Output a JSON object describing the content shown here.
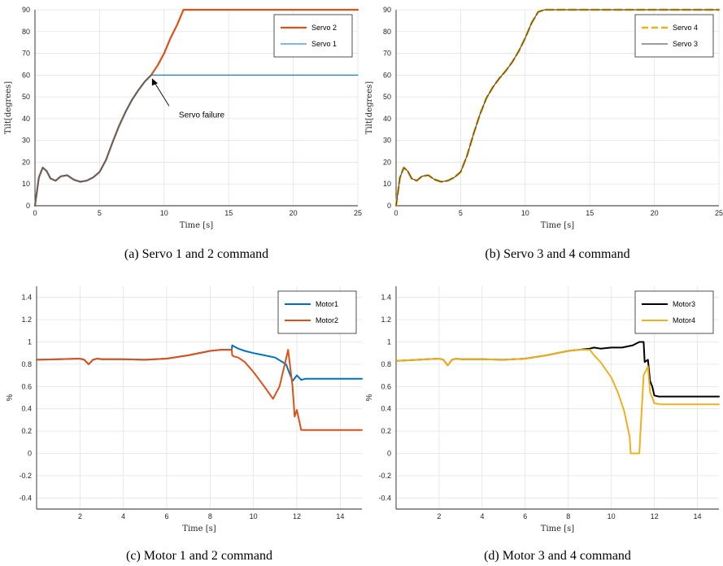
{
  "chart_data": [
    {
      "type": "line",
      "id": "a",
      "caption": "(a)  Servo 1 and 2 command",
      "xlabel": "Time [s]",
      "ylabel": "Tilt[degrees]",
      "xlim": [
        0,
        25
      ],
      "ylim": [
        0,
        90
      ],
      "xticks": [
        "0",
        "5",
        "10",
        "15",
        "20",
        "25"
      ],
      "yticks": [
        "0",
        "10",
        "20",
        "30",
        "40",
        "50",
        "60",
        "70",
        "80",
        "90"
      ],
      "grid": true,
      "legend": "top-right",
      "annotation": {
        "text": "Servo failure",
        "x": 9.0,
        "y": 60
      },
      "series": [
        {
          "name": "Servo 2",
          "color": "#D95319",
          "width": 2.2,
          "x": [
            0,
            0.3,
            0.6,
            0.9,
            1.2,
            1.6,
            2.0,
            2.5,
            3.0,
            3.5,
            4.0,
            4.5,
            5.0,
            5.5,
            6.0,
            6.5,
            7.0,
            7.5,
            8.0,
            8.5,
            9.0,
            9.5,
            10.0,
            10.5,
            11.0,
            11.5,
            25
          ],
          "y": [
            0,
            13,
            17.5,
            16,
            12.5,
            11.5,
            13.5,
            14,
            12,
            11,
            11.5,
            13,
            15.5,
            21,
            29,
            36.5,
            43,
            48.5,
            53,
            57,
            60,
            64.5,
            70,
            77,
            83,
            90,
            90
          ]
        },
        {
          "name": "Servo 1",
          "color": "#0072BD",
          "width": 1.1,
          "x": [
            9.0,
            25
          ],
          "y": [
            60,
            60
          ]
        },
        {
          "name": "",
          "color": "#646464",
          "width": 2.0,
          "x": [
            0,
            0.3,
            0.6,
            0.9,
            1.2,
            1.6,
            2.0,
            2.5,
            3.0,
            3.5,
            4.0,
            4.5,
            5.0,
            5.5,
            6.0,
            6.5,
            7.0,
            7.5,
            8.0,
            8.5,
            9.0
          ],
          "y": [
            0,
            13,
            17.5,
            16,
            12.5,
            11.5,
            13.5,
            14,
            12,
            11,
            11.5,
            13,
            15.5,
            21,
            29,
            36.5,
            43,
            48.5,
            53,
            57,
            60
          ]
        }
      ]
    },
    {
      "type": "line",
      "id": "b",
      "caption": "(b)  Servo 3 and 4 command",
      "xlabel": "Time [s]",
      "ylabel": "Tilt[degrees]",
      "xlim": [
        0,
        25
      ],
      "ylim": [
        0,
        90
      ],
      "xticks": [
        "0",
        "5",
        "10",
        "15",
        "20",
        "25"
      ],
      "yticks": [
        "0",
        "10",
        "20",
        "30",
        "40",
        "50",
        "60",
        "70",
        "80",
        "90"
      ],
      "grid": true,
      "legend": "top-right",
      "series": [
        {
          "name": "Servo 4",
          "color": "#EDB120",
          "width": 2.8,
          "dash": true,
          "x": [
            0,
            0.3,
            0.6,
            0.9,
            1.2,
            1.6,
            2.0,
            2.5,
            3.0,
            3.5,
            4.0,
            4.5,
            5.0,
            5.5,
            6.0,
            6.5,
            7.0,
            7.5,
            8.0,
            8.5,
            9.0,
            9.5,
            10.0,
            10.5,
            11.0,
            11.5,
            25
          ],
          "y": [
            0,
            13,
            17.5,
            16,
            12.5,
            11.5,
            13.5,
            14,
            12,
            11,
            11.5,
            13,
            15.5,
            23,
            33,
            42,
            49.5,
            54.5,
            58.5,
            62,
            66,
            71,
            77,
            84,
            89,
            90,
            90
          ]
        },
        {
          "name": "Servo 3",
          "color": "#3a3a3a",
          "width": 1.0,
          "x": [
            0,
            0.3,
            0.6,
            0.9,
            1.2,
            1.6,
            2.0,
            2.5,
            3.0,
            3.5,
            4.0,
            4.5,
            5.0,
            5.5,
            6.0,
            6.5,
            7.0,
            7.5,
            8.0,
            8.5,
            9.0,
            9.5,
            10.0,
            10.5,
            11.0,
            11.5,
            25
          ],
          "y": [
            0,
            13,
            17.5,
            16,
            12.5,
            11.5,
            13.5,
            14,
            12,
            11,
            11.5,
            13,
            15.5,
            23,
            33,
            42,
            49.5,
            54.5,
            58.5,
            62,
            66,
            71,
            77,
            84,
            89,
            90,
            90
          ]
        }
      ]
    },
    {
      "type": "line",
      "id": "c",
      "caption": "(c)  Motor 1 and 2 command",
      "xlabel": "Time [s]",
      "ylabel": "%",
      "xlim": [
        0,
        15
      ],
      "ylim": [
        -0.5,
        1.5
      ],
      "xticks": [
        "2",
        "4",
        "6",
        "8",
        "10",
        "12",
        "14"
      ],
      "yticks": [
        "-0.4",
        "-0.2",
        "0",
        "0.2",
        "0.4",
        "0.6",
        "0.8",
        "1",
        "1.2",
        "1.4"
      ],
      "grid": true,
      "legend": "top-right",
      "series": [
        {
          "name": "Motor1",
          "color": "#0072BD",
          "width": 2.0,
          "x": [
            0,
            1,
            2,
            2.2,
            2.4,
            2.6,
            2.8,
            3,
            4,
            5,
            6,
            7,
            8,
            8.5,
            9,
            9.02,
            9.1,
            9.3,
            9.6,
            10,
            10.5,
            11,
            11.5,
            11.8,
            12,
            12.2,
            12.4,
            13,
            14,
            15
          ],
          "y": [
            0.84,
            0.845,
            0.85,
            0.84,
            0.8,
            0.84,
            0.85,
            0.845,
            0.845,
            0.84,
            0.85,
            0.88,
            0.92,
            0.93,
            0.93,
            0.97,
            0.96,
            0.94,
            0.92,
            0.9,
            0.88,
            0.86,
            0.8,
            0.65,
            0.7,
            0.66,
            0.67,
            0.67,
            0.67,
            0.67
          ]
        },
        {
          "name": "Motor2",
          "color": "#D95319",
          "width": 2.0,
          "x": [
            0,
            1,
            2,
            2.2,
            2.4,
            2.6,
            2.8,
            3,
            4,
            5,
            6,
            7,
            8,
            8.5,
            9,
            9.02,
            9.1,
            9.3,
            9.6,
            10,
            10.5,
            10.9,
            11.2,
            11.6,
            11.8,
            11.9,
            12,
            12.1,
            12.2,
            12.3,
            13,
            14,
            15
          ],
          "y": [
            0.84,
            0.845,
            0.85,
            0.84,
            0.8,
            0.84,
            0.85,
            0.845,
            0.845,
            0.84,
            0.85,
            0.88,
            0.92,
            0.93,
            0.93,
            0.88,
            0.87,
            0.86,
            0.82,
            0.73,
            0.6,
            0.49,
            0.6,
            0.93,
            0.6,
            0.33,
            0.39,
            0.3,
            0.21,
            0.21,
            0.21,
            0.21,
            0.21
          ]
        }
      ]
    },
    {
      "type": "line",
      "id": "d",
      "caption": "(d)  Motor 3 and 4 command",
      "xlabel": "Time [s]",
      "ylabel": "%",
      "xlim": [
        0,
        15
      ],
      "ylim": [
        -0.5,
        1.5
      ],
      "xticks": [
        "2",
        "4",
        "6",
        "8",
        "10",
        "12",
        "14"
      ],
      "yticks": [
        "-0.4",
        "-0.2",
        "0",
        "0.2",
        "0.4",
        "0.6",
        "0.8",
        "1",
        "1.2",
        "1.4"
      ],
      "grid": true,
      "legend": "top-right",
      "series": [
        {
          "name": "Motor3",
          "color": "#000000",
          "width": 2.0,
          "x": [
            0,
            1,
            2,
            2.2,
            2.4,
            2.6,
            2.8,
            3,
            4,
            5,
            6,
            7,
            8,
            8.5,
            9,
            9.2,
            9.5,
            10,
            10.5,
            11,
            11.3,
            11.5,
            11.55,
            11.7,
            11.8,
            11.9,
            12,
            12.2,
            13,
            14,
            15
          ],
          "y": [
            0.83,
            0.84,
            0.85,
            0.84,
            0.79,
            0.84,
            0.85,
            0.845,
            0.845,
            0.84,
            0.85,
            0.88,
            0.92,
            0.93,
            0.94,
            0.95,
            0.94,
            0.95,
            0.95,
            0.97,
            1.0,
            1.0,
            0.82,
            0.84,
            0.65,
            0.6,
            0.52,
            0.51,
            0.51,
            0.51,
            0.51
          ]
        },
        {
          "name": "Motor4",
          "color": "#EDB120",
          "width": 2.0,
          "x": [
            0,
            1,
            2,
            2.2,
            2.4,
            2.6,
            2.8,
            3,
            4,
            5,
            6,
            7,
            8,
            8.5,
            9,
            9.2,
            9.5,
            10,
            10.3,
            10.6,
            10.85,
            10.9,
            11.3,
            11.5,
            11.7,
            11.8,
            11.9,
            12,
            12.3,
            13,
            14,
            15
          ],
          "y": [
            0.83,
            0.84,
            0.85,
            0.84,
            0.79,
            0.84,
            0.85,
            0.845,
            0.845,
            0.84,
            0.85,
            0.88,
            0.92,
            0.93,
            0.93,
            0.88,
            0.82,
            0.68,
            0.55,
            0.38,
            0.15,
            0.0,
            0.0,
            0.7,
            0.78,
            0.55,
            0.5,
            0.45,
            0.44,
            0.44,
            0.44,
            0.44
          ]
        }
      ]
    }
  ]
}
